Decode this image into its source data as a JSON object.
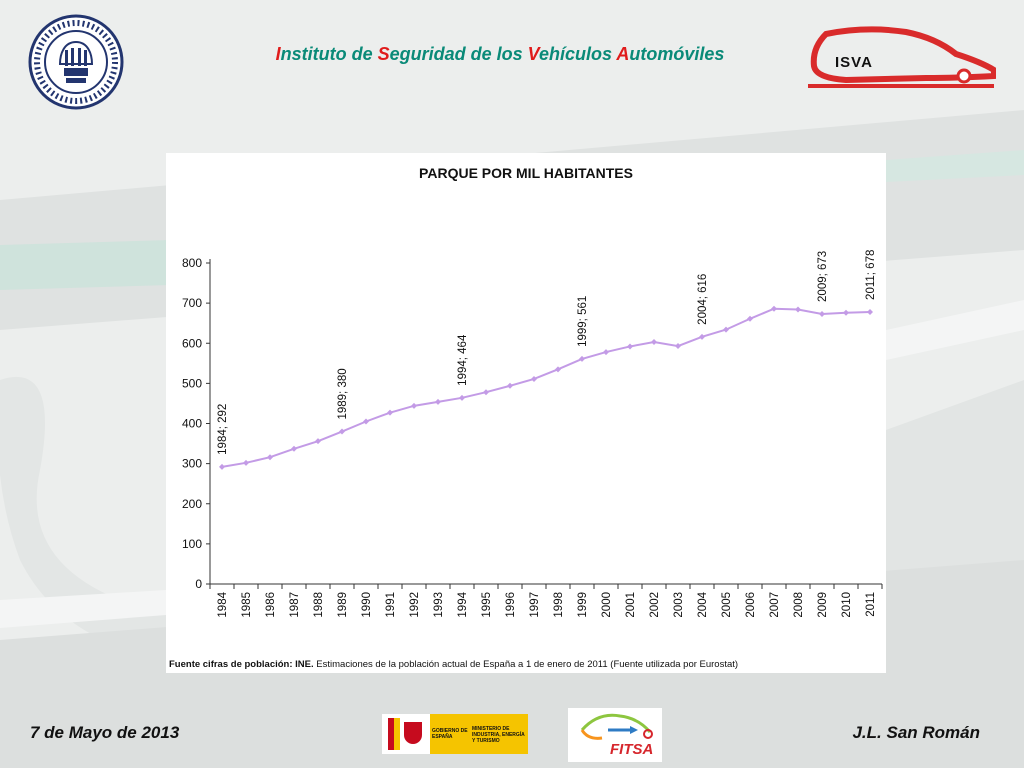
{
  "header": {
    "title_parts": [
      {
        "cap": "I",
        "rest": "nstituto de "
      },
      {
        "cap": "S",
        "rest": "eguridad de los "
      },
      {
        "cap": "V",
        "rest": "ehículos "
      },
      {
        "cap": "A",
        "rest": "utomóviles"
      }
    ],
    "isva_label": "ISVA"
  },
  "chart_data": {
    "type": "line",
    "title": "PARQUE POR MIL HABITANTES",
    "xlabel": "",
    "ylabel": "",
    "ylim": [
      0,
      800
    ],
    "yticks": [
      0,
      100,
      200,
      300,
      400,
      500,
      600,
      700,
      800
    ],
    "categories": [
      "1984",
      "1985",
      "1986",
      "1987",
      "1988",
      "1989",
      "1990",
      "1991",
      "1992",
      "1993",
      "1994",
      "1995",
      "1996",
      "1997",
      "1998",
      "1999",
      "2000",
      "2001",
      "2002",
      "2003",
      "2004",
      "2005",
      "2006",
      "2007",
      "2008",
      "2009",
      "2010",
      "2011"
    ],
    "series": [
      {
        "values": [
          292,
          302,
          316,
          337,
          356,
          380,
          405,
          427,
          444,
          454,
          464,
          478,
          494,
          511,
          535,
          561,
          578,
          592,
          603,
          593,
          616,
          634,
          661,
          686,
          684,
          673,
          676,
          678
        ]
      }
    ],
    "annotations": [
      {
        "category": "1984",
        "label": "1984; 292"
      },
      {
        "category": "1989",
        "label": "1989; 380"
      },
      {
        "category": "1994",
        "label": "1994; 464"
      },
      {
        "category": "1999",
        "label": "1999; 561"
      },
      {
        "category": "2004",
        "label": "2004; 616"
      },
      {
        "category": "2009",
        "label": "2009; 673"
      },
      {
        "category": "2011",
        "label": "2011; 678"
      }
    ],
    "line_color": "#c39be6",
    "grid": false,
    "legend": "none"
  },
  "source_note": {
    "bold": "Fuente cifras de población: INE.",
    "text": " Estimaciones de la población actual de España a 1 de enero de 2011 (Fuente utilizada por Eurostat)"
  },
  "footer": {
    "date": "7 de Mayo de 2013",
    "author": "J.L. San Román",
    "gov_line1": "GOBIERNO DE ESPAÑA",
    "gov_line2": "MINISTERIO DE INDUSTRIA, ENERGÍA Y TURISMO",
    "fitsa_label": "FITSA"
  }
}
